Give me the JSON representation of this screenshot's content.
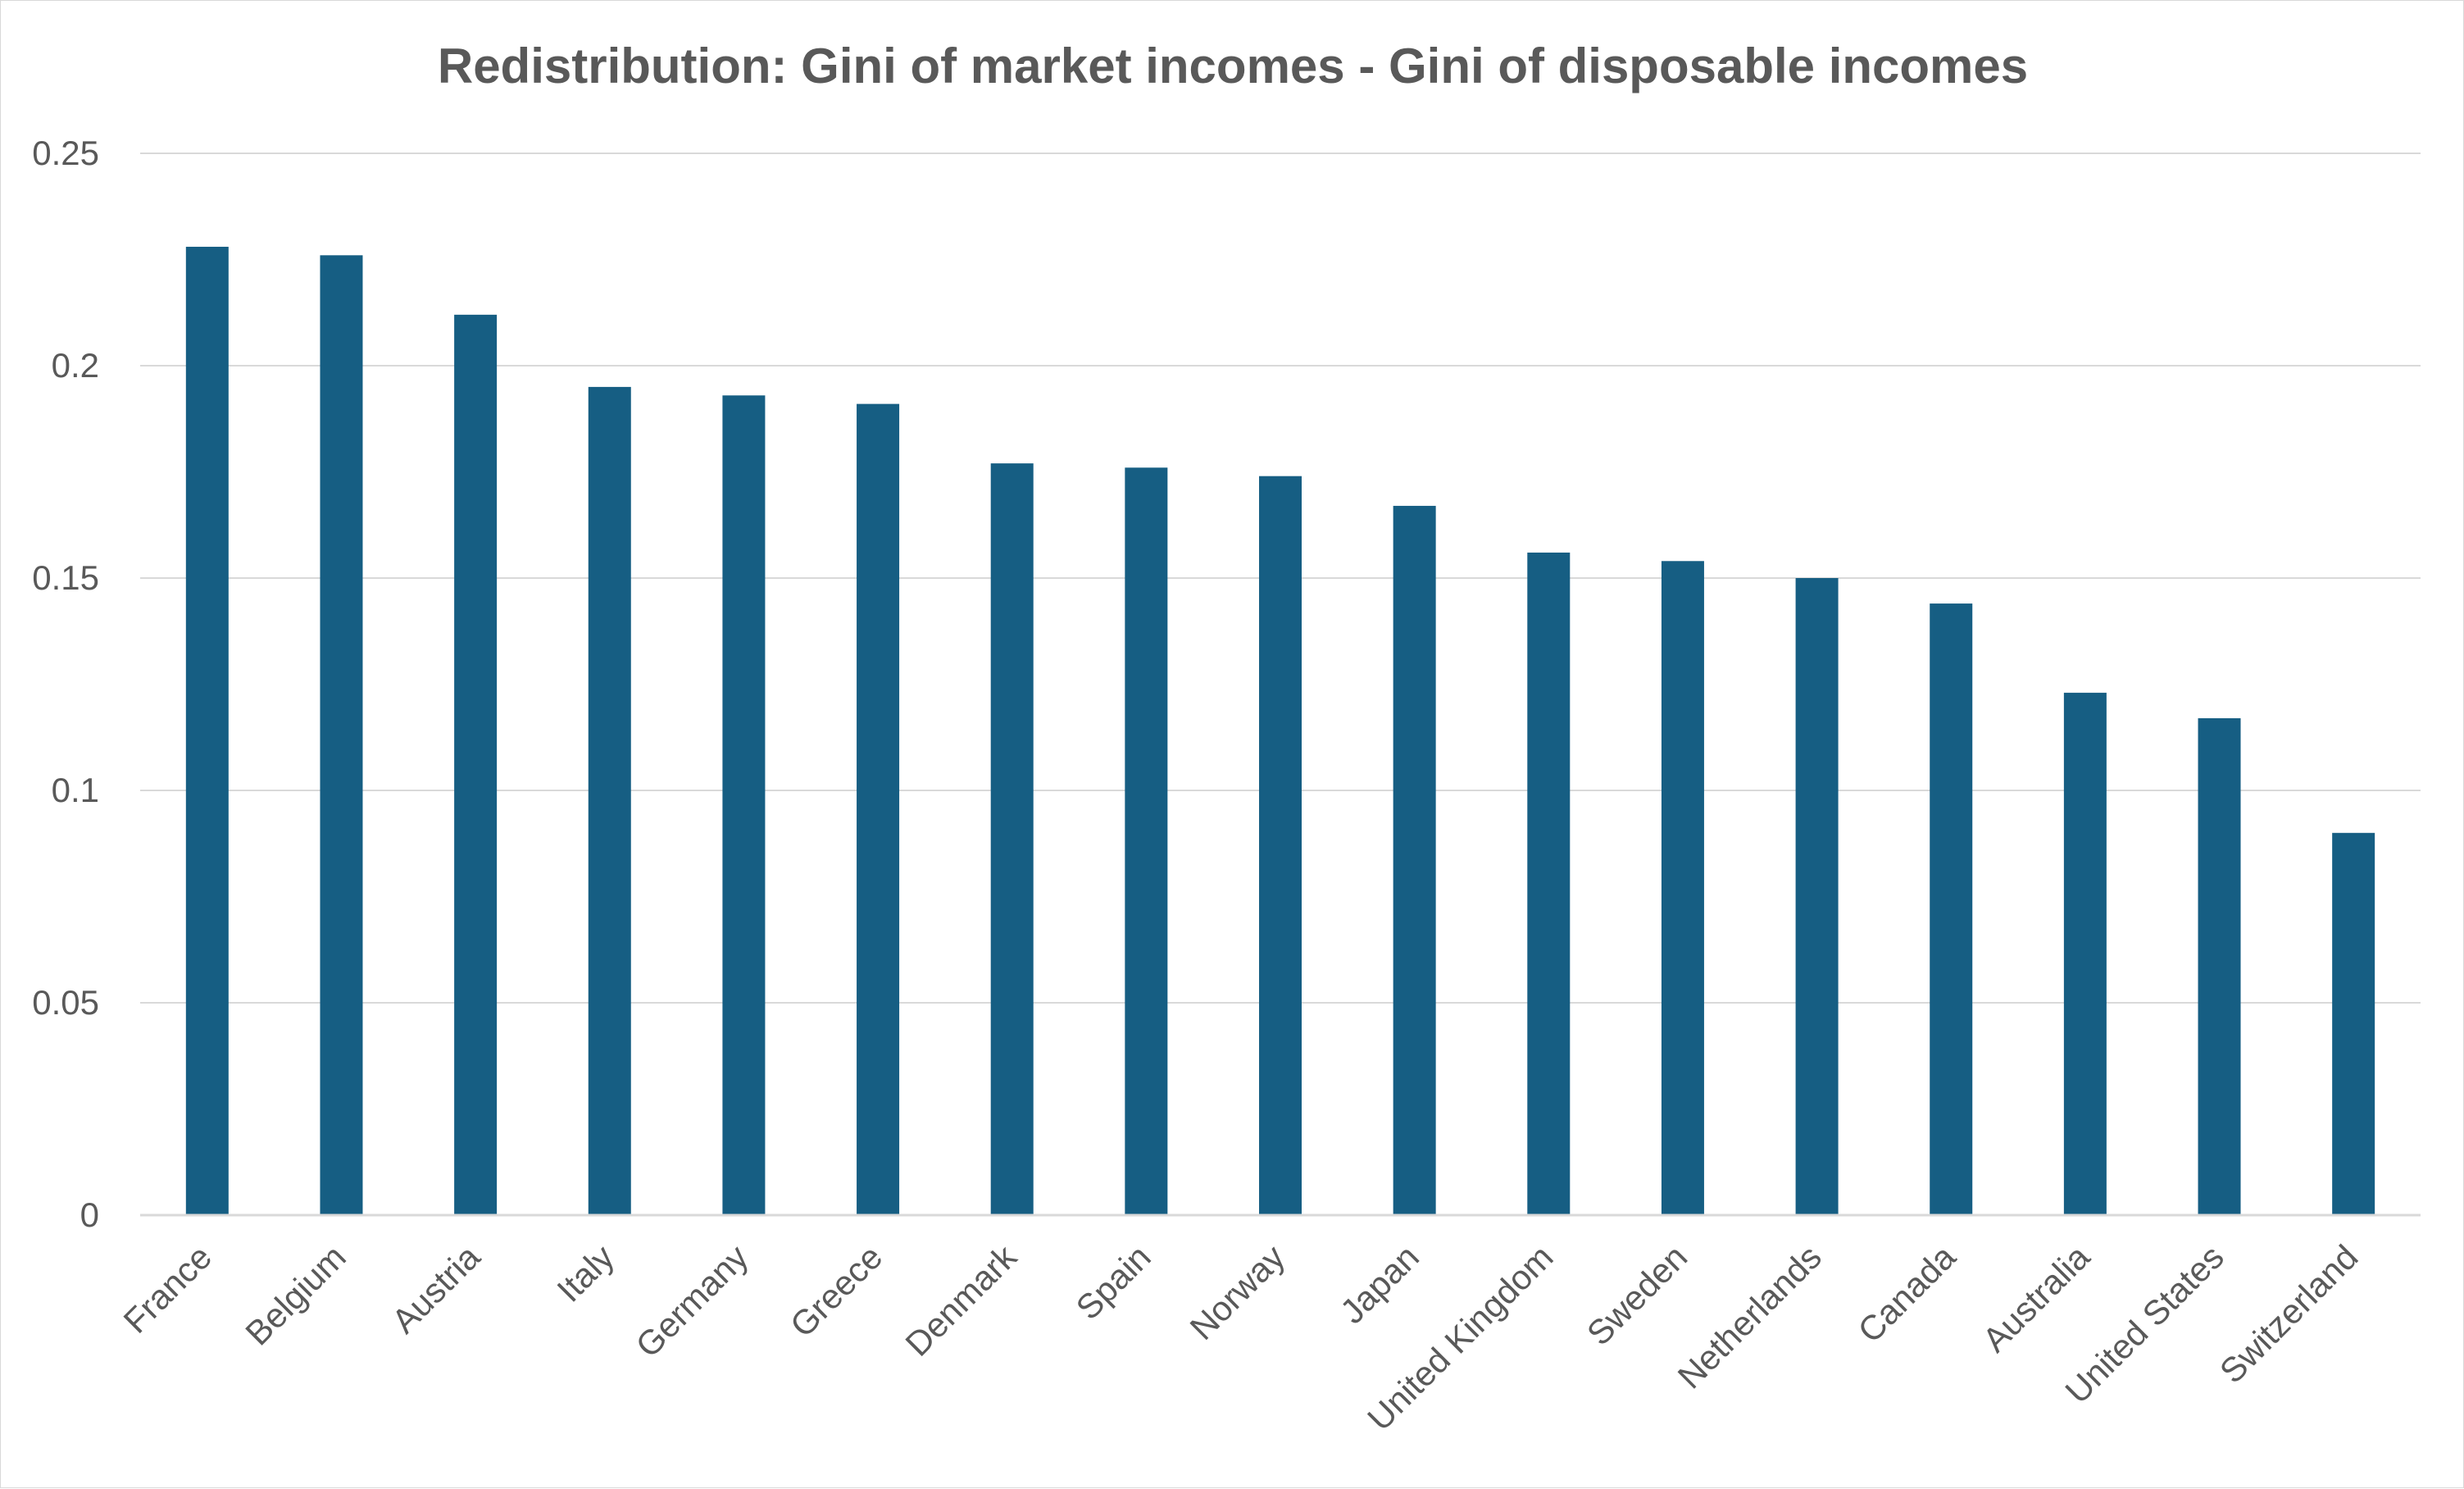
{
  "chart_data": {
    "type": "bar",
    "title": "Redistribution: Gini of market incomes - Gini of disposable incomes",
    "xlabel": "",
    "ylabel": "",
    "ylim": [
      0,
      0.25
    ],
    "yticks": [
      {
        "value": 0,
        "label": "0"
      },
      {
        "value": 0.05,
        "label": "0.05"
      },
      {
        "value": 0.1,
        "label": "0.1"
      },
      {
        "value": 0.15,
        "label": "0.15"
      },
      {
        "value": 0.2,
        "label": "0.2"
      },
      {
        "value": 0.25,
        "label": "0.25"
      }
    ],
    "grid": true,
    "legend": "none",
    "bar_color": "#165E83",
    "categories": [
      "France",
      "Belgium",
      "Austria",
      "Italy",
      "Germany",
      "Greece",
      "Denmark",
      "Spain",
      "Norway",
      "Japan",
      "United Kingdom",
      "Sweden",
      "Netherlands",
      "Canada",
      "Australia",
      "United States",
      "Switzerland"
    ],
    "values": [
      0.228,
      0.226,
      0.212,
      0.195,
      0.193,
      0.191,
      0.177,
      0.176,
      0.174,
      0.167,
      0.156,
      0.154,
      0.15,
      0.144,
      0.123,
      0.117,
      0.09
    ]
  }
}
